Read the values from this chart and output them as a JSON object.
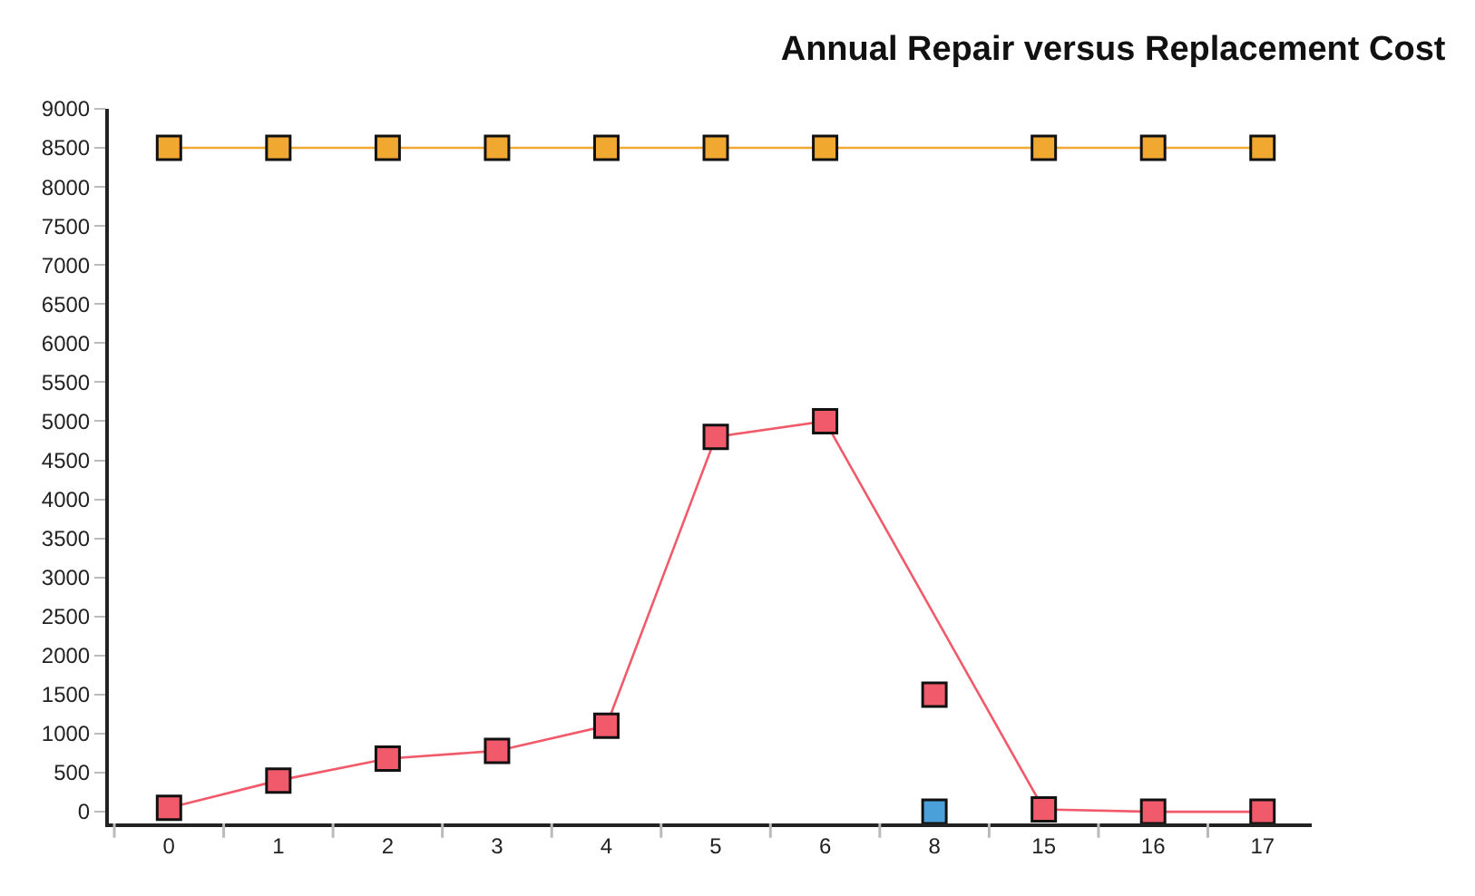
{
  "chart_data": {
    "type": "line",
    "title": "Annual Repair versus Replacement Cost",
    "categories": [
      "0",
      "1",
      "2",
      "3",
      "4",
      "5",
      "6",
      "8",
      "15",
      "16",
      "17"
    ],
    "series": [
      {
        "color": "#f0a830",
        "values": [
          8500,
          8500,
          8500,
          8500,
          8500,
          8500,
          8500,
          null,
          8500,
          8500,
          8500
        ]
      },
      {
        "color": "#f05a6a",
        "values": [
          50,
          400,
          680,
          780,
          1100,
          4800,
          5000,
          null,
          30,
          0,
          0
        ]
      },
      {
        "type": "scatter",
        "color": "#f05a6a",
        "values": [
          null,
          null,
          null,
          null,
          null,
          null,
          null,
          1500,
          null,
          null,
          null
        ]
      },
      {
        "type": "scatter",
        "color": "#4aa0d8",
        "values": [
          null,
          null,
          null,
          null,
          null,
          null,
          null,
          0,
          null,
          null,
          null
        ]
      }
    ],
    "ylim": [
      -150,
      9000
    ],
    "yticks": [
      0,
      500,
      1000,
      1500,
      2000,
      2500,
      3000,
      3500,
      4000,
      4500,
      5000,
      5500,
      6000,
      6500,
      7000,
      7500,
      8000,
      8500,
      9000
    ],
    "marker": "square"
  }
}
